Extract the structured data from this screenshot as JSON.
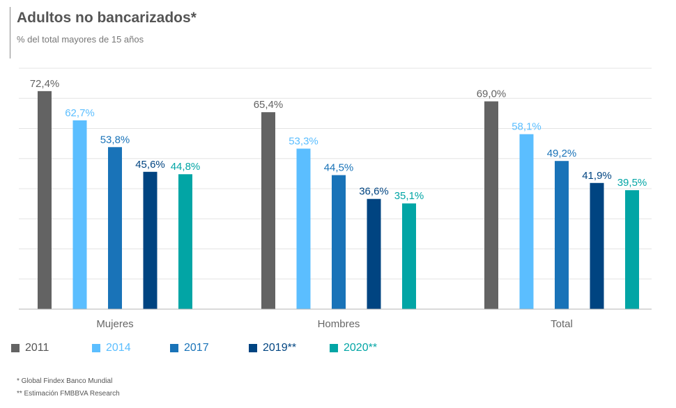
{
  "title": "Adultos no bancarizados*",
  "subtitle": "% del total mayores de 15 años",
  "chart_data": {
    "type": "bar",
    "categories": [
      "Mujeres",
      "Hombres",
      "Total"
    ],
    "series": [
      {
        "name": "2011",
        "color": "#636363",
        "values": [
          72.4,
          65.4,
          69.0
        ],
        "labels": [
          "72,4%",
          "65,4%",
          "69,0%"
        ]
      },
      {
        "name": "2014",
        "color": "#5bbeff",
        "values": [
          62.7,
          53.3,
          58.1
        ],
        "labels": [
          "62,7%",
          "53,3%",
          "58,1%"
        ]
      },
      {
        "name": "2017",
        "color": "#1973b8",
        "values": [
          53.8,
          44.5,
          49.2
        ],
        "labels": [
          "53,8%",
          "44,5%",
          "49,2%"
        ]
      },
      {
        "name": "2019**",
        "color": "#004481",
        "values": [
          45.6,
          36.6,
          41.9
        ],
        "labels": [
          "45,6%",
          "36,6%",
          "41,9%"
        ]
      },
      {
        "name": "2020**",
        "color": "#02a5a5",
        "values": [
          44.8,
          35.1,
          39.5
        ],
        "labels": [
          "44,8%",
          "35,1%",
          "39,5%"
        ]
      }
    ],
    "ylim": [
      0,
      80
    ],
    "grid": true,
    "legend_position": "bottom-left"
  },
  "footnotes": [
    "* Global Findex Banco Mundial",
    "** Estimación FMBBVA Research"
  ]
}
